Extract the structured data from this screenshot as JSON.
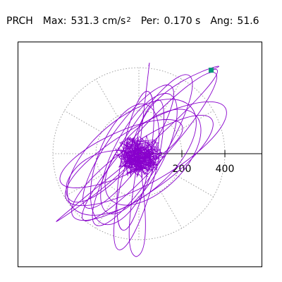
{
  "header": {
    "channel": "PRCH",
    "max_label": "Max:",
    "max_value": "531.3",
    "max_unit": "cm/s",
    "max_unit_exp": "2",
    "period_label": "Per:",
    "period_value": "0.170 s",
    "angle_label": "Ang:",
    "angle_value": "51.6"
  },
  "plot": {
    "type": "polar-orbit",
    "ring_values": [
      200,
      400
    ],
    "tick_labels": [
      "200",
      "400"
    ],
    "trace_color": "#8800cc",
    "marker_color": "#009977",
    "grid_color": "#888888",
    "frame_color": "#000000"
  }
}
